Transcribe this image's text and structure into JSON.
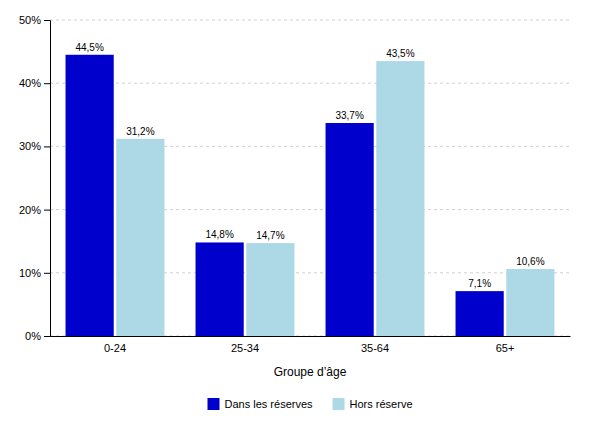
{
  "chart_data": {
    "type": "bar",
    "xlabel": "Groupe d’âge",
    "categories": [
      "0-24",
      "25-34",
      "35-64",
      "65+"
    ],
    "series": [
      {
        "name": "Dans les réserves",
        "color": "#0000CC",
        "values": [
          44.5,
          14.8,
          33.7,
          7.1
        ],
        "value_labels": [
          "44,5%",
          "14,8%",
          "33,7%",
          "7,1%"
        ]
      },
      {
        "name": "Hors réserve",
        "color": "#ADD8E6",
        "values": [
          31.2,
          14.7,
          43.5,
          10.6
        ],
        "value_labels": [
          "31,2%",
          "14,7%",
          "43,5%",
          "10,6%"
        ]
      }
    ],
    "ylim": [
      0,
      50
    ],
    "yticks": [
      {
        "value": 0,
        "label": "0%"
      },
      {
        "value": 10,
        "label": "10%"
      },
      {
        "value": 20,
        "label": "20%"
      },
      {
        "value": 30,
        "label": "30%"
      },
      {
        "value": 40,
        "label": "40%"
      },
      {
        "value": 50,
        "label": "50%"
      }
    ],
    "grid": true,
    "legend": "bottom",
    "data_labels": true
  }
}
